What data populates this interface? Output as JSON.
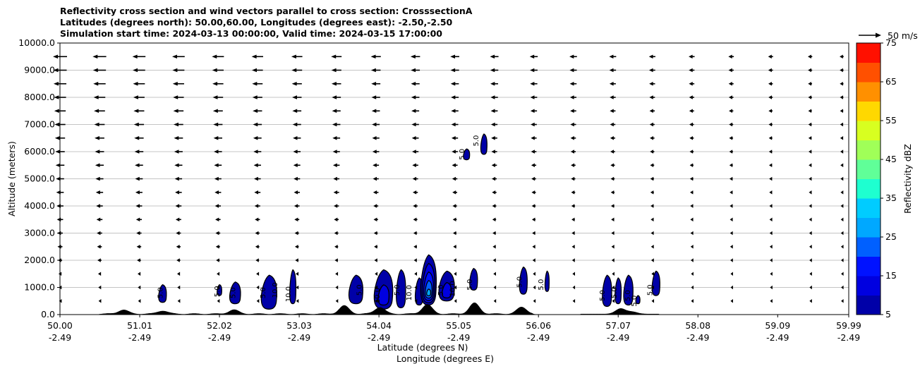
{
  "chart_data": {
    "type": "filled-contour cross section with wind vectors",
    "title_lines": [
      "Reflectivity cross section and wind vectors parallel to cross section: CrosssectionA",
      "Latitudes (degrees north): 50.00,60.00, Longitudes (degrees east): -2.50,-2.50",
      "Simulation start time: 2024-03-13 00:00:00, Valid time: 2024-03-15 17:00:00"
    ],
    "ylabel": "Altitude (meters)",
    "xlabel_primary": "Latitude (degrees N)",
    "xlabel_secondary": "Longitude (degrees E)",
    "xlim": [
      50.0,
      59.99
    ],
    "ylim": [
      0,
      10000
    ],
    "grid": "horizontal",
    "y_ticks": [
      {
        "value": 0,
        "label": "0.0"
      },
      {
        "value": 1000,
        "label": "1000.0"
      },
      {
        "value": 2000,
        "label": "2000.0"
      },
      {
        "value": 3000,
        "label": "3000.0"
      },
      {
        "value": 4000,
        "label": "4000.0"
      },
      {
        "value": 5000,
        "label": "5000.0"
      },
      {
        "value": 6000,
        "label": "6000.0"
      },
      {
        "value": 7000,
        "label": "7000.0"
      },
      {
        "value": 8000,
        "label": "8000.0"
      },
      {
        "value": 9000,
        "label": "9000.0"
      },
      {
        "value": 10000,
        "label": "10000.0"
      }
    ],
    "x_ticks": [
      {
        "value": 50.0,
        "lat": "50.00",
        "lon": "-2.49"
      },
      {
        "value": 51.01,
        "lat": "51.01",
        "lon": "-2.49"
      },
      {
        "value": 52.02,
        "lat": "52.02",
        "lon": "-2.49"
      },
      {
        "value": 53.03,
        "lat": "53.03",
        "lon": "-2.49"
      },
      {
        "value": 54.04,
        "lat": "54.04",
        "lon": "-2.49"
      },
      {
        "value": 55.05,
        "lat": "55.05",
        "lon": "-2.49"
      },
      {
        "value": 56.06,
        "lat": "56.06",
        "lon": "-2.49"
      },
      {
        "value": 57.07,
        "lat": "57.07",
        "lon": "-2.49"
      },
      {
        "value": 58.08,
        "lat": "58.08",
        "lon": "-2.49"
      },
      {
        "value": 59.09,
        "lat": "59.09",
        "lon": "-2.49"
      },
      {
        "value": 59.99,
        "lat": "59.99",
        "lon": "-2.49"
      }
    ],
    "colorbar": {
      "label": "Reflectivity dBZ",
      "min": 5,
      "max": 75,
      "levels": [
        5,
        10,
        15,
        20,
        25,
        30,
        35,
        40,
        45,
        50,
        55,
        60,
        65,
        70,
        75
      ],
      "colors": [
        "#0000a8",
        "#0000e0",
        "#0012ff",
        "#0060ff",
        "#00a8ff",
        "#00ccff",
        "#1effd0",
        "#60ff98",
        "#a0ff58",
        "#d8ff20",
        "#ffd800",
        "#ff9000",
        "#ff5000",
        "#ff1000",
        "#a80000"
      ],
      "tick_labels": [
        {
          "value": 5,
          "label": "5"
        },
        {
          "value": 15,
          "label": "15"
        },
        {
          "value": 25,
          "label": "25"
        },
        {
          "value": 35,
          "label": "35"
        },
        {
          "value": 45,
          "label": "45"
        },
        {
          "value": 55,
          "label": "55"
        },
        {
          "value": 65,
          "label": "65"
        },
        {
          "value": 75,
          "label": "75"
        }
      ]
    },
    "quiver_key": {
      "label": "50 m/s",
      "speed": 50
    },
    "wind_field": {
      "levels_m": [
        500,
        1000,
        1500,
        2000,
        2500,
        3000,
        3500,
        4000,
        4500,
        5000,
        5500,
        6000,
        6500,
        7000,
        7500,
        8000,
        8500,
        9000,
        9500
      ],
      "columns_lat": [
        50.0,
        50.5,
        51.0,
        51.5,
        52.0,
        52.5,
        53.0,
        53.5,
        54.0,
        54.5,
        55.0,
        55.5,
        56.0,
        56.5,
        57.0,
        57.5,
        58.0,
        58.5,
        59.0,
        59.5,
        59.9
      ],
      "dominant_direction": "southward (toward lower latitude)",
      "max_speed_ms": 25
    },
    "terrain_peaks": [
      {
        "lat": 50.8,
        "height_m": 150
      },
      {
        "lat": 51.3,
        "height_m": 120
      },
      {
        "lat": 52.2,
        "height_m": 150
      },
      {
        "lat": 53.6,
        "height_m": 300
      },
      {
        "lat": 54.05,
        "height_m": 250
      },
      {
        "lat": 54.65,
        "height_m": 350
      },
      {
        "lat": 55.25,
        "height_m": 400
      },
      {
        "lat": 55.85,
        "height_m": 250
      },
      {
        "lat": 57.1,
        "height_m": 200
      },
      {
        "lat": 57.25,
        "height_m": 80
      }
    ],
    "reflectivity_cells": [
      {
        "lat": 51.3,
        "base_m": 450,
        "top_m": 1100,
        "half_width_deg": 0.05,
        "max_dbz": 10
      },
      {
        "lat": 52.02,
        "base_m": 700,
        "top_m": 1100,
        "half_width_deg": 0.03,
        "max_dbz": 10
      },
      {
        "lat": 52.22,
        "base_m": 400,
        "top_m": 1200,
        "half_width_deg": 0.07,
        "max_dbz": 10
      },
      {
        "lat": 52.65,
        "base_m": 200,
        "top_m": 1450,
        "half_width_deg": 0.1,
        "max_dbz": 10
      },
      {
        "lat": 52.95,
        "base_m": 400,
        "top_m": 1650,
        "half_width_deg": 0.04,
        "max_dbz": 10
      },
      {
        "lat": 53.75,
        "base_m": 400,
        "top_m": 1450,
        "half_width_deg": 0.09,
        "max_dbz": 10
      },
      {
        "lat": 54.1,
        "base_m": 200,
        "top_m": 1650,
        "half_width_deg": 0.12,
        "max_dbz": 15
      },
      {
        "lat": 54.32,
        "base_m": 250,
        "top_m": 1650,
        "half_width_deg": 0.06,
        "max_dbz": 10
      },
      {
        "lat": 54.55,
        "base_m": 350,
        "top_m": 1350,
        "half_width_deg": 0.05,
        "max_dbz": 10
      },
      {
        "lat": 54.67,
        "base_m": 350,
        "top_m": 2200,
        "half_width_deg": 0.1,
        "max_dbz": 30
      },
      {
        "lat": 54.9,
        "base_m": 500,
        "top_m": 1600,
        "half_width_deg": 0.1,
        "max_dbz": 15
      },
      {
        "lat": 55.24,
        "base_m": 900,
        "top_m": 1700,
        "half_width_deg": 0.05,
        "max_dbz": 10
      },
      {
        "lat": 55.37,
        "base_m": 5900,
        "top_m": 6650,
        "half_width_deg": 0.04,
        "max_dbz": 10
      },
      {
        "lat": 55.15,
        "base_m": 5700,
        "top_m": 6100,
        "half_width_deg": 0.04,
        "max_dbz": 10
      },
      {
        "lat": 55.87,
        "base_m": 750,
        "top_m": 1750,
        "half_width_deg": 0.05,
        "max_dbz": 10
      },
      {
        "lat": 56.17,
        "base_m": 850,
        "top_m": 1600,
        "half_width_deg": 0.02,
        "max_dbz": 10
      },
      {
        "lat": 56.93,
        "base_m": 300,
        "top_m": 1450,
        "half_width_deg": 0.06,
        "max_dbz": 10
      },
      {
        "lat": 57.07,
        "base_m": 400,
        "top_m": 1350,
        "half_width_deg": 0.04,
        "max_dbz": 10
      },
      {
        "lat": 57.2,
        "base_m": 350,
        "top_m": 1450,
        "half_width_deg": 0.06,
        "max_dbz": 10
      },
      {
        "lat": 57.32,
        "base_m": 400,
        "top_m": 700,
        "half_width_deg": 0.02,
        "max_dbz": 10
      },
      {
        "lat": 57.55,
        "base_m": 700,
        "top_m": 1600,
        "half_width_deg": 0.05,
        "max_dbz": 10
      }
    ],
    "contour_labels": [
      {
        "lat": 51.3,
        "alt_m": 800,
        "text": "5.0"
      },
      {
        "lat": 52.02,
        "alt_m": 850,
        "text": "5.0"
      },
      {
        "lat": 52.22,
        "alt_m": 800,
        "text": "5.0"
      },
      {
        "lat": 52.6,
        "alt_m": 800,
        "text": "5.0"
      },
      {
        "lat": 52.75,
        "alt_m": 900,
        "text": "10.0"
      },
      {
        "lat": 52.92,
        "alt_m": 750,
        "text": "10.0"
      },
      {
        "lat": 53.82,
        "alt_m": 900,
        "text": "5.0"
      },
      {
        "lat": 54.05,
        "alt_m": 700,
        "text": "10.0"
      },
      {
        "lat": 54.3,
        "alt_m": 900,
        "text": "5.0"
      },
      {
        "lat": 54.45,
        "alt_m": 800,
        "text": "10.0"
      },
      {
        "lat": 54.85,
        "alt_m": 900,
        "text": "5.0"
      },
      {
        "lat": 55.0,
        "alt_m": 950,
        "text": "10.0"
      },
      {
        "lat": 55.22,
        "alt_m": 1100,
        "text": "5.0"
      },
      {
        "lat": 55.12,
        "alt_m": 5900,
        "text": "5.0"
      },
      {
        "lat": 55.3,
        "alt_m": 6400,
        "text": "5.0"
      },
      {
        "lat": 55.85,
        "alt_m": 1200,
        "text": "5.0"
      },
      {
        "lat": 56.12,
        "alt_m": 1100,
        "text": "5.0"
      },
      {
        "lat": 56.9,
        "alt_m": 700,
        "text": "5.0"
      },
      {
        "lat": 57.05,
        "alt_m": 800,
        "text": "5.0"
      },
      {
        "lat": 57.22,
        "alt_m": 700,
        "text": "5.0"
      },
      {
        "lat": 57.3,
        "alt_m": 500,
        "text": "5.0"
      },
      {
        "lat": 57.5,
        "alt_m": 900,
        "text": "5.0"
      }
    ]
  }
}
